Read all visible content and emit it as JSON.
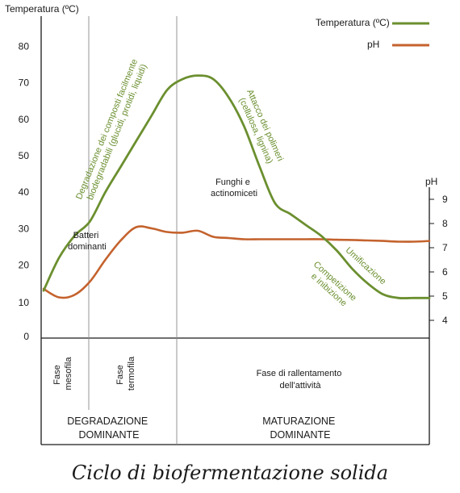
{
  "chart_data": {
    "type": "line",
    "ylabel_left": "Temperatura (ºC)",
    "ylabel_right": "pH",
    "y_left_ticks": [
      "80",
      "70",
      "60",
      "50",
      "40",
      "30",
      "20",
      "10",
      "0"
    ],
    "y_right_ticks": [
      "9",
      "8",
      "7",
      "6",
      "5",
      "4"
    ],
    "ylim_left": [
      0,
      85
    ],
    "ylim_right": [
      4,
      9.5
    ],
    "legend": "top-right",
    "series": [
      {
        "name": "Temperatura (ºC)",
        "color": "#6b8f2f",
        "axis": "left",
        "x": [
          0,
          4,
          8,
          12,
          16,
          20,
          24,
          28,
          32,
          36,
          40,
          44,
          48,
          52,
          56,
          60,
          64,
          68,
          72,
          76,
          80,
          84,
          88,
          92,
          96,
          100
        ],
        "y": [
          13,
          22,
          28,
          32,
          40,
          47,
          54,
          61,
          68,
          71,
          72,
          71,
          66,
          58,
          47,
          37,
          34,
          31,
          28,
          24,
          19,
          15,
          12,
          11,
          11,
          11
        ]
      },
      {
        "name": "pH",
        "color": "#c4622d",
        "axis": "right",
        "x": [
          0,
          4,
          8,
          12,
          16,
          20,
          24,
          28,
          32,
          36,
          40,
          44,
          48,
          52,
          56,
          60,
          64,
          68,
          72,
          76,
          80,
          84,
          88,
          92,
          96,
          100
        ],
        "y": [
          5.3,
          4.95,
          5.05,
          5.6,
          6.5,
          7.3,
          7.85,
          7.8,
          7.65,
          7.62,
          7.7,
          7.45,
          7.4,
          7.35,
          7.35,
          7.35,
          7.35,
          7.35,
          7.35,
          7.33,
          7.32,
          7.3,
          7.28,
          7.25,
          7.25,
          7.28
        ]
      }
    ],
    "annotations": {
      "batteri": [
        "Batteri",
        "dominanti"
      ],
      "funghi": [
        "Funghi e",
        "actinomiceti"
      ],
      "degradazione": [
        "Degradazione dei composti facilmente",
        "biodegradabili (glucidi, protidi, liquidi)"
      ],
      "attacco": [
        "Attacco dei polimeri",
        "(cellulosa, lignina)"
      ],
      "competizione": [
        "Competizione",
        "e inibizione"
      ],
      "umificazione": "Umificazione"
    },
    "phases": {
      "mesofila": [
        "Fase",
        "mesofila"
      ],
      "termofila": [
        "Fase",
        "termofila"
      ],
      "rallentamento": [
        "Fase di rallentamento",
        "dell'attività"
      ],
      "degradazione_dominante": [
        "DEGRADAZIONE",
        "DOMINANTE"
      ],
      "maturazione_dominante": [
        "MATURAZIONE",
        "DOMINANTE"
      ]
    }
  },
  "caption": "Ciclo di biofermentazione solida"
}
